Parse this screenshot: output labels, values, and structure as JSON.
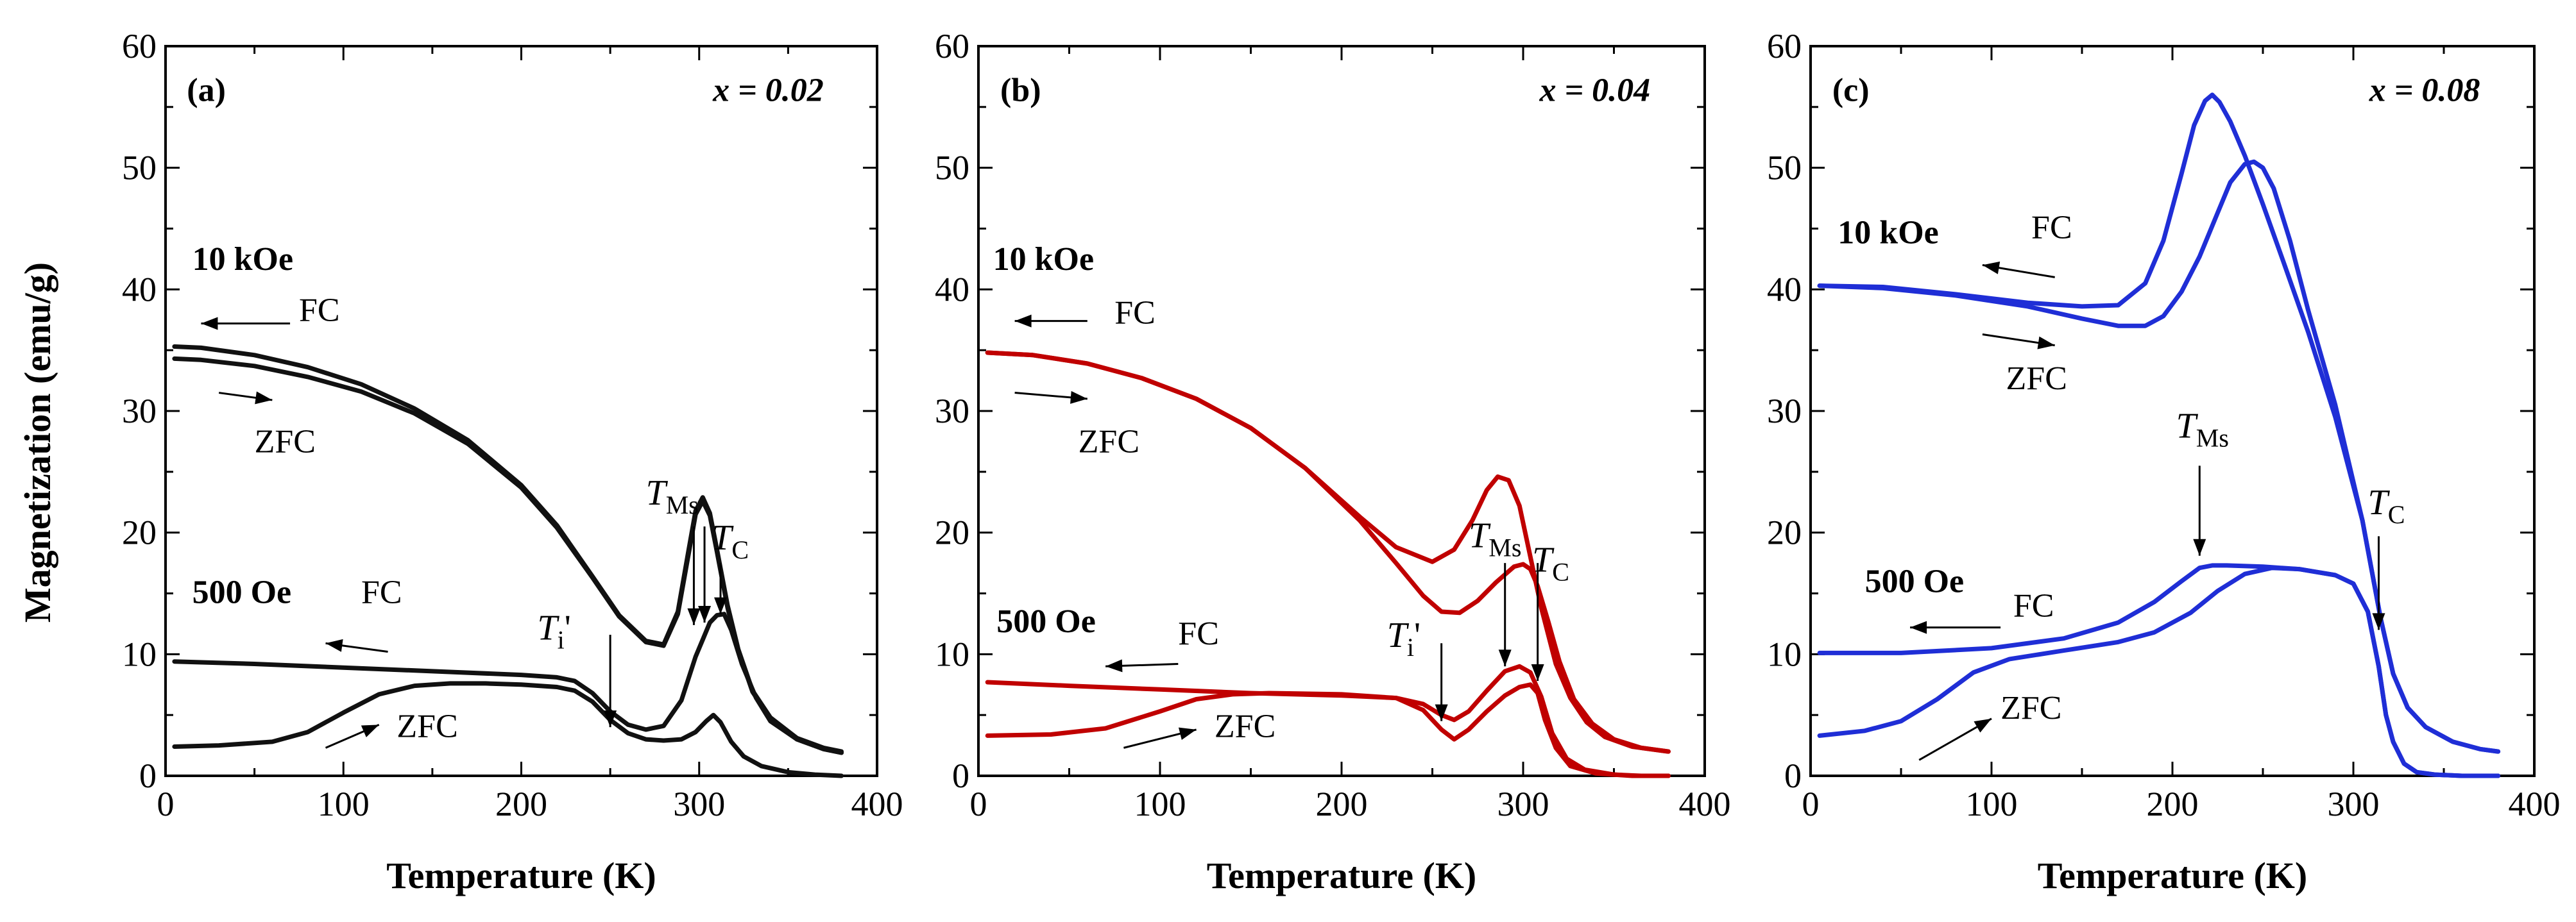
{
  "figure": {
    "ylabel": "Magnetization (emu/g)",
    "xlabel": "Temperature (K)"
  },
  "chart_data": [
    {
      "type": "line",
      "panel_label": "(a)",
      "composition": "x = 0.02",
      "color": "#111111",
      "xlim": [
        0,
        400
      ],
      "ylim": [
        0,
        60
      ],
      "xticks": [
        0,
        100,
        200,
        300,
        400
      ],
      "yticks": [
        0,
        10,
        20,
        30,
        40,
        50,
        60
      ],
      "xlabel": "Temperature (K)",
      "ylabel": "Magnetization (emu/g)",
      "labels": {
        "field_high": "10 kOe",
        "field_low": "500 Oe",
        "fc_high": "FC",
        "zfc_high": "ZFC",
        "fc_low": "FC",
        "zfc_low": "ZFC",
        "ti": "T",
        "ti_sub": "i",
        "ti_prime": "'",
        "tms": "T",
        "tms_sub": "Ms",
        "tc": "T",
        "tc_sub": "C"
      },
      "series": [
        {
          "name": "10 kOe FC",
          "x": [
            5,
            20,
            50,
            80,
            110,
            140,
            170,
            200,
            220,
            240,
            255,
            270,
            280,
            288,
            294,
            298,
            302,
            306,
            310,
            316,
            322,
            330,
            340,
            355,
            370,
            380
          ],
          "y": [
            35.3,
            35.2,
            34.6,
            33.6,
            32.2,
            30.2,
            27.6,
            23.9,
            20.6,
            16.4,
            13.2,
            11.1,
            10.8,
            13.5,
            18.5,
            21.8,
            22.9,
            21.6,
            18.6,
            14.0,
            10.4,
            7.0,
            4.8,
            3.1,
            2.3,
            2.0
          ]
        },
        {
          "name": "10 kOe ZFC",
          "x": [
            5,
            20,
            50,
            80,
            110,
            140,
            170,
            200,
            220,
            240,
            255,
            270,
            280,
            288,
            294,
            298,
            302,
            306,
            310,
            316,
            322,
            330,
            340,
            355,
            370,
            380
          ],
          "y": [
            34.3,
            34.2,
            33.7,
            32.8,
            31.6,
            29.8,
            27.3,
            23.7,
            20.4,
            16.3,
            13.1,
            11.0,
            10.7,
            13.3,
            18.2,
            21.5,
            22.6,
            21.4,
            18.4,
            13.8,
            10.3,
            6.9,
            4.7,
            3.0,
            2.2,
            1.9
          ]
        },
        {
          "name": "500 Oe FC",
          "x": [
            5,
            50,
            100,
            150,
            200,
            220,
            230,
            240,
            250,
            260,
            270,
            280,
            290,
            298,
            302,
            306,
            310,
            314,
            318,
            324,
            332,
            340,
            355,
            370,
            380
          ],
          "y": [
            9.4,
            9.2,
            8.9,
            8.6,
            8.3,
            8.1,
            7.8,
            6.8,
            5.3,
            4.2,
            3.8,
            4.1,
            6.2,
            9.8,
            11.2,
            12.6,
            13.2,
            13.3,
            12.0,
            9.2,
            6.4,
            4.5,
            3.0,
            2.2,
            1.9
          ]
        },
        {
          "name": "500 Oe ZFC",
          "x": [
            5,
            30,
            60,
            80,
            100,
            120,
            140,
            160,
            180,
            200,
            220,
            230,
            240,
            250,
            260,
            270,
            280,
            290,
            298,
            304,
            308,
            312,
            318,
            325,
            335,
            350,
            365,
            380
          ],
          "y": [
            2.4,
            2.5,
            2.8,
            3.6,
            5.2,
            6.7,
            7.4,
            7.6,
            7.6,
            7.5,
            7.3,
            7.0,
            6.1,
            4.6,
            3.5,
            3.0,
            2.9,
            3.0,
            3.6,
            4.5,
            5.0,
            4.4,
            2.8,
            1.6,
            0.8,
            0.3,
            0.1,
            0.0
          ]
        }
      ]
    },
    {
      "type": "line",
      "panel_label": "(b)",
      "composition": "x = 0.04",
      "color": "#c00000",
      "xlim": [
        0,
        400
      ],
      "ylim": [
        0,
        60
      ],
      "xticks": [
        0,
        100,
        200,
        300,
        400
      ],
      "yticks": [
        0,
        10,
        20,
        30,
        40,
        50,
        60
      ],
      "xlabel": "Temperature (K)",
      "ylabel": "Magnetization (emu/g)",
      "labels": {
        "field_high": "10 kOe",
        "field_low": "500 Oe",
        "fc_high": "FC",
        "zfc_high": "ZFC",
        "fc_low": "FC",
        "zfc_low": "ZFC",
        "ti": "T",
        "ti_sub": "i",
        "ti_prime": "'",
        "tms": "T",
        "tms_sub": "Ms",
        "tc": "T",
        "tc_sub": "C"
      },
      "series": [
        {
          "name": "10 kOe FC",
          "x": [
            5,
            30,
            60,
            90,
            120,
            150,
            180,
            210,
            230,
            250,
            262,
            272,
            280,
            286,
            292,
            298,
            304,
            310,
            318,
            326,
            335,
            345,
            360,
            380
          ],
          "y": [
            34.8,
            34.6,
            33.9,
            32.7,
            31.0,
            28.6,
            25.3,
            21.3,
            18.8,
            17.6,
            18.6,
            21.0,
            23.5,
            24.6,
            24.3,
            22.2,
            18.0,
            13.8,
            9.2,
            6.4,
            4.4,
            3.2,
            2.4,
            2.0
          ]
        },
        {
          "name": "10 kOe ZFC",
          "x": [
            5,
            30,
            60,
            90,
            120,
            150,
            180,
            210,
            230,
            245,
            255,
            265,
            275,
            285,
            295,
            300,
            304,
            308,
            314,
            320,
            328,
            338,
            350,
            365,
            380
          ],
          "y": [
            34.8,
            34.6,
            33.9,
            32.7,
            31.0,
            28.6,
            25.3,
            21.0,
            17.5,
            14.8,
            13.5,
            13.4,
            14.4,
            15.9,
            17.2,
            17.4,
            17.0,
            15.6,
            12.6,
            9.4,
            6.3,
            4.3,
            3.0,
            2.3,
            2.0
          ]
        },
        {
          "name": "500 Oe FC",
          "x": [
            5,
            50,
            100,
            150,
            200,
            230,
            245,
            255,
            262,
            270,
            280,
            290,
            298,
            304,
            310,
            316,
            324,
            334,
            350,
            365,
            380
          ],
          "y": [
            7.7,
            7.4,
            7.1,
            6.8,
            6.6,
            6.4,
            5.9,
            5.0,
            4.6,
            5.3,
            7.0,
            8.6,
            9.0,
            8.5,
            6.5,
            3.5,
            1.4,
            0.5,
            0.1,
            0.0,
            0.0
          ]
        },
        {
          "name": "500 Oe ZFC",
          "x": [
            5,
            40,
            70,
            100,
            120,
            140,
            160,
            200,
            230,
            245,
            255,
            262,
            270,
            280,
            290,
            298,
            304,
            308,
            312,
            318,
            326,
            340,
            360,
            380
          ],
          "y": [
            3.3,
            3.4,
            3.9,
            5.3,
            6.3,
            6.7,
            6.8,
            6.7,
            6.4,
            5.4,
            3.8,
            3.0,
            3.8,
            5.3,
            6.6,
            7.3,
            7.5,
            6.8,
            4.6,
            2.3,
            0.8,
            0.2,
            0.0,
            0.0
          ]
        }
      ]
    },
    {
      "type": "line",
      "panel_label": "(c)",
      "composition": "x = 0.08",
      "color": "#1f2ed6",
      "xlim": [
        0,
        400
      ],
      "ylim": [
        0,
        60
      ],
      "xticks": [
        0,
        100,
        200,
        300,
        400
      ],
      "yticks": [
        0,
        10,
        20,
        30,
        40,
        50,
        60
      ],
      "xlabel": "Temperature (K)",
      "ylabel": "Magnetization (emu/g)",
      "labels": {
        "field_high": "10 kOe",
        "field_low": "500 Oe",
        "fc_high": "FC",
        "zfc_high": "ZFC",
        "fc_low": "FC",
        "zfc_low": "ZFC",
        "tms": "T",
        "tms_sub": "Ms",
        "tc": "T",
        "tc_sub": "C"
      },
      "series": [
        {
          "name": "10 kOe FC",
          "x": [
            5,
            40,
            80,
            120,
            150,
            170,
            185,
            195,
            205,
            212,
            218,
            222,
            226,
            232,
            240,
            250,
            262,
            275,
            290,
            305,
            315,
            322,
            330,
            340,
            355,
            370,
            380
          ],
          "y": [
            40.3,
            40.2,
            39.6,
            38.9,
            38.6,
            38.7,
            40.5,
            44.0,
            49.5,
            53.5,
            55.5,
            56.0,
            55.4,
            53.8,
            51.0,
            47.0,
            42.0,
            36.5,
            29.5,
            21.0,
            13.0,
            8.4,
            5.6,
            4.0,
            2.8,
            2.2,
            2.0
          ]
        },
        {
          "name": "10 kOe ZFC",
          "x": [
            5,
            40,
            80,
            120,
            150,
            170,
            185,
            195,
            205,
            215,
            225,
            232,
            240,
            245,
            250,
            256,
            265,
            275,
            290,
            305,
            315,
            322,
            330,
            340,
            355,
            370,
            380
          ],
          "y": [
            40.3,
            40.1,
            39.5,
            38.6,
            37.6,
            37.0,
            37.0,
            37.8,
            39.8,
            42.7,
            46.3,
            48.8,
            50.3,
            50.5,
            50.0,
            48.3,
            44.0,
            38.3,
            30.5,
            21.0,
            13.0,
            8.4,
            5.6,
            4.0,
            2.8,
            2.2,
            2.0
          ]
        },
        {
          "name": "500 Oe FC",
          "x": [
            5,
            50,
            100,
            140,
            170,
            190,
            205,
            215,
            222,
            230,
            250,
            270,
            290,
            300,
            308,
            314,
            318,
            322,
            328,
            335,
            345,
            360,
            380
          ],
          "y": [
            10.1,
            10.1,
            10.5,
            11.3,
            12.6,
            14.3,
            16.0,
            17.1,
            17.3,
            17.3,
            17.2,
            17.0,
            16.5,
            15.8,
            13.5,
            9.0,
            5.0,
            2.8,
            1.0,
            0.3,
            0.1,
            0.0,
            0.0
          ]
        },
        {
          "name": "500 Oe ZFC",
          "x": [
            5,
            30,
            50,
            70,
            90,
            110,
            140,
            170,
            190,
            210,
            225,
            240,
            255,
            270,
            290,
            300,
            308,
            314,
            318,
            322,
            328,
            335,
            345,
            360,
            380
          ],
          "y": [
            3.3,
            3.7,
            4.5,
            6.3,
            8.5,
            9.6,
            10.3,
            11.0,
            11.8,
            13.4,
            15.2,
            16.6,
            17.1,
            17.0,
            16.5,
            15.8,
            13.5,
            9.0,
            5.0,
            2.8,
            1.0,
            0.3,
            0.1,
            0.0,
            0.0
          ]
        }
      ]
    }
  ]
}
